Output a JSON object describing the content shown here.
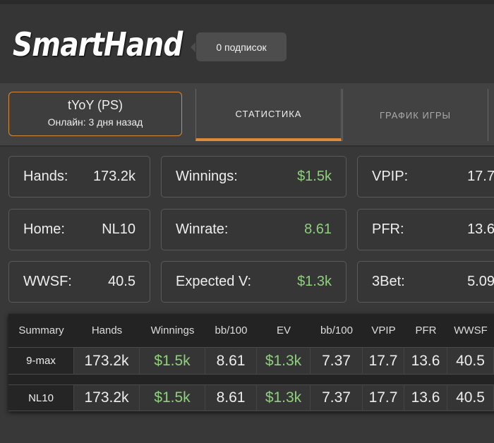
{
  "header": {
    "logo": "SmartHand",
    "subscriptions": "0 подписок"
  },
  "player": {
    "name": "tYoY (PS)",
    "online": "Онлайн: 3 дня назад"
  },
  "tabs": [
    {
      "label": "СТАТИСТИКА",
      "active": true
    },
    {
      "label": "ГРАФИК ИГРЫ",
      "active": false
    }
  ],
  "stats": [
    {
      "label": "Hands:",
      "value": "173.2k",
      "green": false
    },
    {
      "label": "Winnings:",
      "value": "$1.5k",
      "green": true
    },
    {
      "label": "VPIP:",
      "value": "17.7",
      "green": false
    },
    {
      "label": "Home:",
      "value": "NL10",
      "green": false
    },
    {
      "label": "Winrate:",
      "value": "8.61",
      "green": true
    },
    {
      "label": "PFR:",
      "value": "13.6",
      "green": false
    },
    {
      "label": "WWSF:",
      "value": "40.5",
      "green": false
    },
    {
      "label": "Expected V:",
      "value": "$1.3k",
      "green": true
    },
    {
      "label": "3Bet:",
      "value": "5.09",
      "green": false
    }
  ],
  "table": {
    "headers": [
      "Summary",
      "Hands",
      "Winnings",
      "bb/100",
      "EV",
      "bb/100",
      "VPIP",
      "PFR",
      "WWSF"
    ],
    "rows": [
      [
        "9-max",
        "173.2k",
        "$1.5k",
        "8.61",
        "$1.3k",
        "7.37",
        "17.7",
        "13.6",
        "40.5"
      ],
      [
        "NL10",
        "173.2k",
        "$1.5k",
        "8.61",
        "$1.3k",
        "7.37",
        "17.7",
        "13.6",
        "40.5"
      ]
    ]
  },
  "colors": {
    "accent": "#e08b3a",
    "positive": "#8fcf7e"
  }
}
